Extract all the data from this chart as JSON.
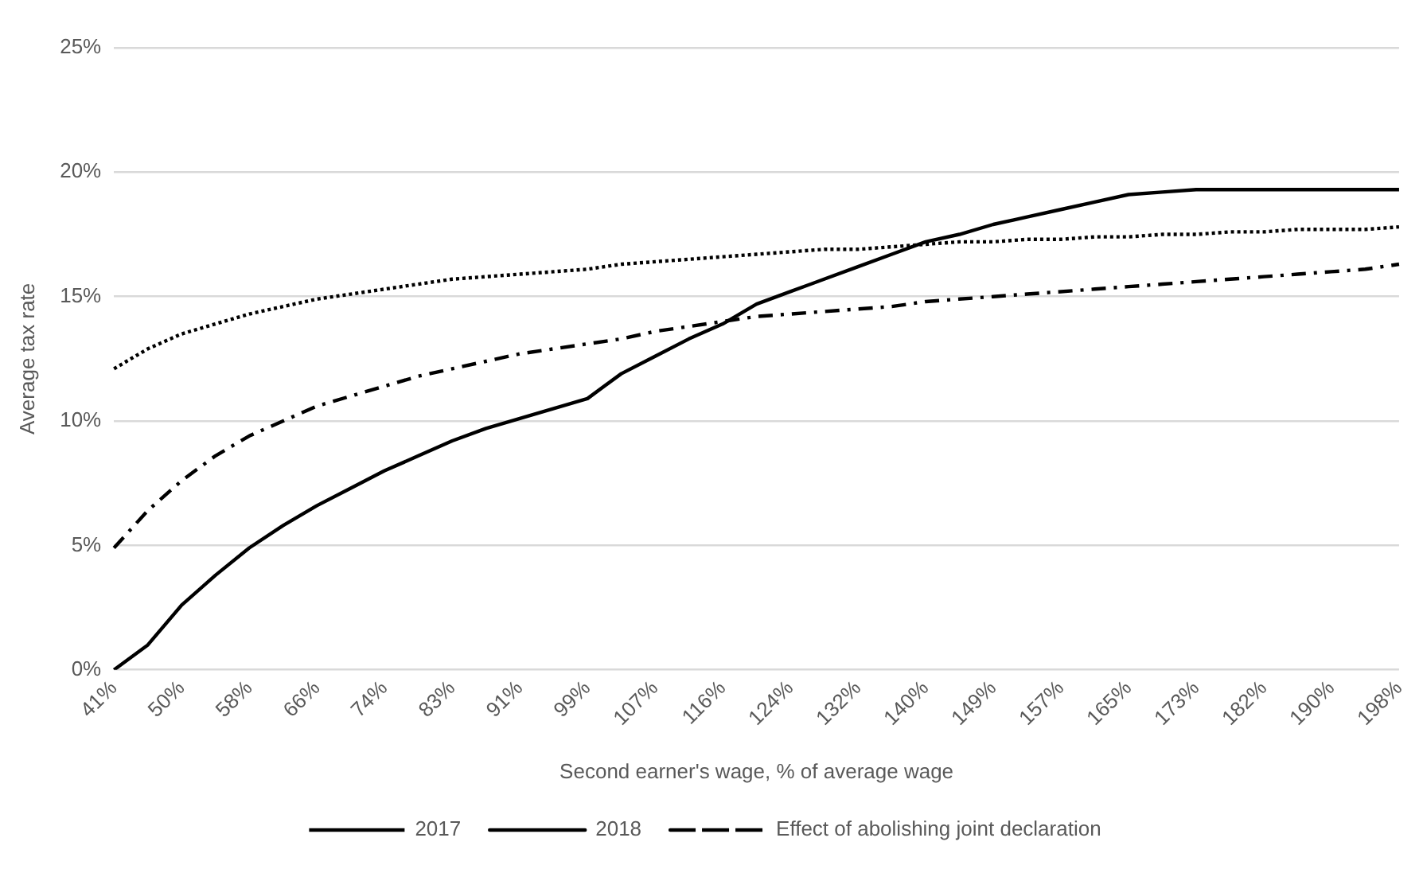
{
  "chart_data": {
    "type": "line",
    "xlabel": "Second earner's wage, % of average wage",
    "ylabel": "Average tax rate",
    "categories": [
      "41%",
      null,
      "50%",
      null,
      "58%",
      null,
      "66%",
      null,
      "74%",
      null,
      "83%",
      null,
      "91%",
      null,
      "99%",
      null,
      "107%",
      null,
      "116%",
      null,
      "124%",
      null,
      "132%",
      null,
      "140%",
      null,
      "149%",
      null,
      "157%",
      null,
      "165%",
      null,
      "173%",
      null,
      "182%",
      null,
      "190%",
      null,
      "198%"
    ],
    "series": [
      {
        "name": "2017",
        "color": "#000000",
        "line_style": "dotted",
        "values": [
          12.1,
          12.9,
          13.5,
          13.9,
          14.3,
          14.6,
          14.9,
          15.1,
          15.3,
          15.5,
          15.7,
          15.8,
          15.9,
          16.0,
          16.1,
          16.3,
          16.4,
          16.5,
          16.6,
          16.7,
          16.8,
          16.9,
          16.9,
          17.0,
          17.1,
          17.2,
          17.2,
          17.3,
          17.3,
          17.4,
          17.4,
          17.5,
          17.5,
          17.6,
          17.6,
          17.7,
          17.7,
          17.7,
          17.8
        ]
      },
      {
        "name": "2018",
        "color": "#000000",
        "line_style": "solid",
        "values": [
          0,
          1.0,
          2.6,
          3.8,
          4.9,
          5.8,
          6.6,
          7.3,
          8.0,
          8.6,
          9.2,
          9.7,
          10.1,
          10.5,
          10.9,
          11.9,
          12.6,
          13.3,
          13.9,
          14.7,
          15.2,
          15.7,
          16.2,
          16.7,
          17.2,
          17.5,
          17.9,
          18.2,
          18.5,
          18.8,
          19.1,
          19.2,
          19.3,
          19.3,
          19.3,
          19.3,
          19.3,
          19.3,
          19.3
        ]
      },
      {
        "name": "Effect of abolishing joint declaration",
        "color": "#000000",
        "line_style": "dashdot",
        "values": [
          4.9,
          6.4,
          7.6,
          8.6,
          9.4,
          10.0,
          10.6,
          11.0,
          11.4,
          11.8,
          12.1,
          12.4,
          12.7,
          12.9,
          13.1,
          13.3,
          13.6,
          13.8,
          14.0,
          14.2,
          14.3,
          14.4,
          14.5,
          14.6,
          14.8,
          14.9,
          15.0,
          15.1,
          15.2,
          15.3,
          15.4,
          15.5,
          15.6,
          15.7,
          15.8,
          15.9,
          16.0,
          16.1,
          16.3
        ]
      }
    ],
    "ylim": [
      0,
      25
    ],
    "yticks": [
      {
        "value": 0,
        "label": "0%"
      },
      {
        "value": 5,
        "label": "5%"
      },
      {
        "value": 10,
        "label": "10%"
      },
      {
        "value": 15,
        "label": "15%"
      },
      {
        "value": 20,
        "label": "20%"
      },
      {
        "value": 25,
        "label": "25%"
      }
    ],
    "grid": "y",
    "legend": "bottom",
    "marker": "none"
  }
}
